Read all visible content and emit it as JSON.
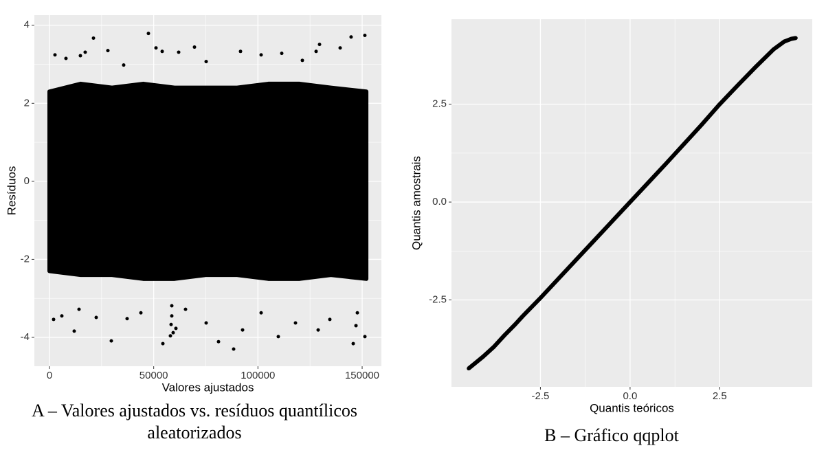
{
  "chart_data": [
    {
      "type": "scatter",
      "caption": "A – Valores ajustados vs. resíduos quantílicos aleatorizados",
      "xlabel": "Valores ajustados",
      "ylabel": "Resíduos",
      "xlim": [
        -7250,
        159230
      ],
      "ylim": [
        -4.74,
        4.26
      ],
      "xticks": [
        0,
        50000,
        100000,
        150000
      ],
      "yticks": [
        -4,
        -2,
        0,
        2,
        4
      ],
      "grid": true,
      "color": "#000000",
      "band": {
        "x": [
          0,
          15000,
          30000,
          45000,
          60000,
          75000,
          90000,
          105000,
          120000,
          135000,
          152000
        ],
        "upper": [
          2.3,
          2.5,
          2.4,
          2.5,
          2.4,
          2.4,
          2.4,
          2.5,
          2.5,
          2.4,
          2.3
        ],
        "lower": [
          -2.3,
          -2.4,
          -2.4,
          -2.5,
          -2.5,
          -2.4,
          -2.4,
          -2.5,
          -2.5,
          -2.4,
          -2.5
        ]
      },
      "x": [
        21100,
        47470,
        151300,
        144700,
        69560,
        51100,
        54070,
        61980,
        28020,
        17140,
        14830,
        7910,
        2640,
        35600,
        91650,
        101540,
        111430,
        129560,
        139450,
        75170,
        121320,
        127910,
        1980,
        11870,
        29670,
        54400,
        58020,
        59340,
        60660,
        58350,
        88350,
        81100,
        92640,
        109780,
        128900,
        145720,
        151320,
        147040,
        5930,
        22420,
        37250,
        75170,
        118020,
        134500,
        14180,
        43850,
        65270,
        101540,
        147700,
        58680,
        58680
      ],
      "values": [
        3.67,
        3.79,
        3.74,
        3.7,
        3.44,
        3.42,
        3.33,
        3.31,
        3.35,
        3.31,
        3.22,
        3.15,
        3.24,
        2.98,
        3.33,
        3.24,
        3.28,
        3.51,
        3.42,
        3.07,
        3.1,
        3.33,
        -3.54,
        -3.84,
        -4.09,
        -4.16,
        -3.96,
        -3.88,
        -3.77,
        -3.67,
        -4.3,
        -4.11,
        -3.81,
        -3.98,
        -3.81,
        -4.16,
        -3.98,
        -3.7,
        -3.45,
        -3.49,
        -3.52,
        -3.63,
        -3.63,
        -3.54,
        -3.28,
        -3.37,
        -3.28,
        -3.37,
        -3.37,
        -3.19,
        -3.45
      ]
    },
    {
      "type": "qq",
      "caption": "B – Gráfico qqplot",
      "xlabel": "Quantis teóricos",
      "ylabel": "Quantis amostrais",
      "xlim": [
        -4.98,
        5.08
      ],
      "ylim": [
        -4.72,
        4.67
      ],
      "xticks": [
        -2.5,
        {
          "value": 0,
          "label": "0.0"
        },
        2.5
      ],
      "yticks": [
        -2.5,
        {
          "value": 0,
          "label": "0.0"
        },
        2.5
      ],
      "grid": true,
      "color": "#000000",
      "x": [
        -4.5,
        -4.3,
        -4.1,
        -3.8,
        -3.5,
        -3.2,
        -3.0,
        -2.5,
        -2.0,
        -1.5,
        -1.0,
        -0.5,
        0,
        0.5,
        1.0,
        1.5,
        2.0,
        2.5,
        3.0,
        3.5,
        4.0,
        4.3,
        4.5,
        4.62
      ],
      "values": [
        -4.25,
        -4.1,
        -3.95,
        -3.7,
        -3.4,
        -3.12,
        -2.92,
        -2.45,
        -1.96,
        -1.47,
        -0.98,
        -0.49,
        0,
        0.49,
        0.98,
        1.48,
        1.98,
        2.5,
        2.98,
        3.45,
        3.9,
        4.1,
        4.17,
        4.19
      ]
    }
  ]
}
